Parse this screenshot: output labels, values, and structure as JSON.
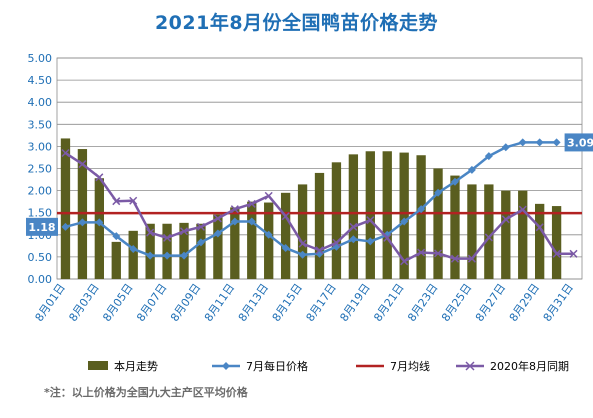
{
  "chart_data": {
    "type": "bar",
    "title": "2021年8月份全国鸭苗价格走势",
    "note": "*注：以上价格为全国九大主产区平均价格",
    "ylim": [
      0,
      5
    ],
    "yticks": [
      "0.00",
      "0.50",
      "1.00",
      "1.50",
      "2.00",
      "2.50",
      "3.00",
      "3.50",
      "4.00",
      "4.50",
      "5.00"
    ],
    "grid": true,
    "legend_position": "bottom",
    "categories": [
      "8月01日",
      "8月02日",
      "8月03日",
      "8月04日",
      "8月05日",
      "8月06日",
      "8月07日",
      "8月08日",
      "8月09日",
      "8月10日",
      "8月11日",
      "8月12日",
      "8月13日",
      "8月14日",
      "8月15日",
      "8月16日",
      "8月17日",
      "8月18日",
      "8月19日",
      "8月20日",
      "8月21日",
      "8月22日",
      "8月23日",
      "8月24日",
      "8月25日",
      "8月26日",
      "8月27日",
      "8月28日",
      "8月29日",
      "8月30日",
      "8月31日"
    ],
    "x_tick_labels": [
      "8月01日",
      "8月03日",
      "8月05日",
      "8月07日",
      "8月09日",
      "8月11日",
      "8月13日",
      "8月15日",
      "8月17日",
      "8月19日",
      "8月21日",
      "8月23日",
      "8月25日",
      "8月27日",
      "8月29日",
      "8月31日"
    ],
    "series": [
      {
        "name": "本月走势",
        "kind": "bar",
        "color": "#5a5e1f",
        "values": [
          3.18,
          2.94,
          2.28,
          0.84,
          1.09,
          1.25,
          1.25,
          1.27,
          1.25,
          1.46,
          1.62,
          1.75,
          1.73,
          1.95,
          2.14,
          2.4,
          2.64,
          2.82,
          2.89,
          2.89,
          2.86,
          2.8,
          2.5,
          2.34,
          2.14,
          2.14,
          2.0,
          2.0,
          1.7,
          1.65,
          null
        ]
      },
      {
        "name": "7月每日价格",
        "kind": "line",
        "color": "#4a86c5",
        "marker": "diamond",
        "values": [
          1.18,
          1.28,
          1.28,
          0.97,
          0.68,
          0.53,
          0.53,
          0.53,
          0.83,
          1.03,
          1.3,
          1.3,
          1.0,
          0.7,
          0.55,
          0.57,
          0.73,
          0.9,
          0.85,
          1.0,
          1.3,
          1.58,
          1.95,
          2.2,
          2.47,
          2.78,
          2.98,
          3.09,
          3.09,
          3.09,
          null
        ],
        "first_label": "1.18",
        "last_label": "3.09"
      },
      {
        "name": "7月均线",
        "kind": "hline",
        "color": "#b22222",
        "value": 1.49
      },
      {
        "name": "2020年8月同期",
        "kind": "line",
        "color": "#7b5aa6",
        "marker": "x",
        "values": [
          2.85,
          2.6,
          2.3,
          1.76,
          1.77,
          1.05,
          0.93,
          1.08,
          1.18,
          1.37,
          1.58,
          1.7,
          1.88,
          1.42,
          0.8,
          0.65,
          0.82,
          1.18,
          1.33,
          0.93,
          0.4,
          0.6,
          0.58,
          0.46,
          0.46,
          0.94,
          1.35,
          1.57,
          1.17,
          0.57,
          0.57
        ]
      }
    ]
  }
}
